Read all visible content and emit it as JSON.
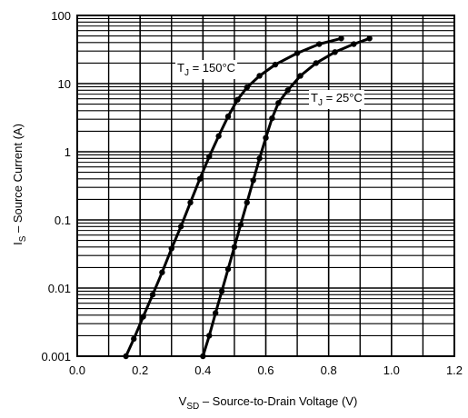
{
  "chart_data": {
    "type": "line",
    "xlabel_prefix": "V",
    "xlabel_sub": "SD",
    "xlabel_rest": " – Source-to-Drain Voltage (V)",
    "ylabel_prefix": "I",
    "ylabel_sub": "S",
    "ylabel_rest": " – Source Current (A)",
    "x_scale": "linear",
    "y_scale": "log",
    "xlim": [
      0.0,
      1.2
    ],
    "ylim": [
      0.001,
      100
    ],
    "x_ticks": [
      "0.0",
      "0.2",
      "0.4",
      "0.6",
      "0.8",
      "1.0",
      "1.2"
    ],
    "y_ticks": [
      "0.001",
      "0.01",
      "0.1",
      "1",
      "10",
      "100"
    ],
    "grid": true,
    "series": [
      {
        "name_prefix": "T",
        "name_sub": "J",
        "name_rest": " = 150°C",
        "color": "#000000",
        "points": [
          [
            0.155,
            0.001
          ],
          [
            0.18,
            0.0018
          ],
          [
            0.21,
            0.0038
          ],
          [
            0.24,
            0.008
          ],
          [
            0.27,
            0.017
          ],
          [
            0.3,
            0.038
          ],
          [
            0.33,
            0.08
          ],
          [
            0.36,
            0.18
          ],
          [
            0.39,
            0.4
          ],
          [
            0.42,
            0.85
          ],
          [
            0.45,
            1.7
          ],
          [
            0.48,
            3.3
          ],
          [
            0.51,
            5.8
          ],
          [
            0.54,
            8.8
          ],
          [
            0.58,
            13
          ],
          [
            0.63,
            19
          ],
          [
            0.7,
            28
          ],
          [
            0.77,
            38
          ],
          [
            0.84,
            46
          ]
        ]
      },
      {
        "name_prefix": "T",
        "name_sub": "J",
        "name_rest": " = 25°C",
        "color": "#000000",
        "points": [
          [
            0.4,
            0.001
          ],
          [
            0.42,
            0.002
          ],
          [
            0.44,
            0.0043
          ],
          [
            0.46,
            0.009
          ],
          [
            0.48,
            0.019
          ],
          [
            0.5,
            0.04
          ],
          [
            0.52,
            0.085
          ],
          [
            0.54,
            0.18
          ],
          [
            0.56,
            0.38
          ],
          [
            0.58,
            0.8
          ],
          [
            0.6,
            1.6
          ],
          [
            0.62,
            3.1
          ],
          [
            0.64,
            5.2
          ],
          [
            0.67,
            8
          ],
          [
            0.71,
            13
          ],
          [
            0.76,
            20
          ],
          [
            0.82,
            29
          ],
          [
            0.88,
            38
          ],
          [
            0.93,
            46
          ]
        ]
      }
    ]
  }
}
